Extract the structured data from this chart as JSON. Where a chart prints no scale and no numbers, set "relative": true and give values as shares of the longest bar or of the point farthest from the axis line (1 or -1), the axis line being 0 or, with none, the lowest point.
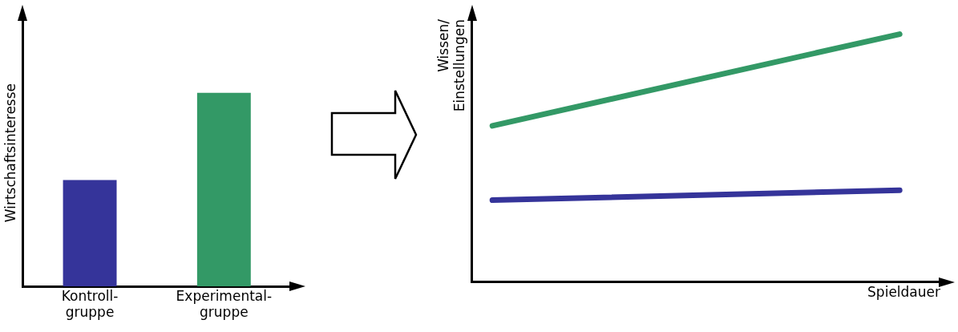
{
  "chart_data": [
    {
      "type": "bar",
      "ylabel": "Wirtschaftsinteresse",
      "categories": [
        "Kontroll-\ngruppe",
        "Experimental-\ngruppe"
      ],
      "values": [
        0.55,
        1
      ],
      "colors": [
        "#35349a",
        "#339966"
      ],
      "relative": true,
      "grid": false,
      "legend": false,
      "tick_labels": "x"
    },
    {
      "type": "line",
      "xlabel": "Spieldauer",
      "ylabel": "Wissen/\nEinstellungen",
      "categories": [
        null,
        null
      ],
      "series": [
        {
          "color": "#339966",
          "values": [
            0.63,
            1
          ]
        },
        {
          "color": "#35349a",
          "values": [
            0.33,
            0.37
          ]
        }
      ],
      "relative": true,
      "grid": false,
      "legend": false,
      "tick_labels": false,
      "marker": "none",
      "line_style": "solid"
    }
  ]
}
